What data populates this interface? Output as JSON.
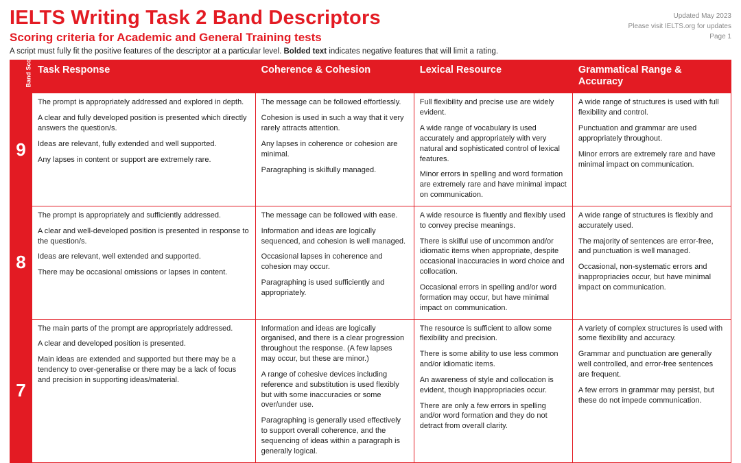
{
  "header": {
    "title": "IELTS Writing Task 2 Band Descriptors",
    "subtitle": "Scoring criteria for Academic and General Training tests",
    "note_pre": "A script must fully fit the positive features of the descriptor at a particular level. ",
    "note_bold": "Bolded text",
    "note_post": " indicates negative features that will limit a rating.",
    "meta_updated": "Updated May 2023",
    "meta_visit": "Please visit IELTS.org for updates",
    "meta_page": "Page 1"
  },
  "columns": {
    "band": "Band Score",
    "c1": "Task Response",
    "c2": "Coherence & Cohesion",
    "c3": "Lexical Resource",
    "c4": "Grammatical Range & Accuracy"
  },
  "rows": [
    {
      "band": "9",
      "c1": [
        "The prompt is appropriately addressed and explored in depth.",
        "A clear and fully developed position is presented which directly answers the question/s.",
        "Ideas are relevant, fully extended and well supported.",
        "Any lapses in content or support are extremely rare."
      ],
      "c2": [
        "The message can be followed effortlessly.",
        "Cohesion is used in such a way that it very rarely attracts attention.",
        "Any lapses in coherence or cohesion are minimal.",
        "Paragraphing is skilfully managed."
      ],
      "c3": [
        "Full flexibility and precise use are widely evident.",
        "A wide range of vocabulary is used accurately and appropriately with very natural and sophisticated control of lexical features.",
        "Minor errors in spelling and word formation are extremely rare and have minimal impact on communication."
      ],
      "c4": [
        "A wide range of structures is used with full flexibility and control.",
        "Punctuation and grammar are used appropriately throughout.",
        "Minor errors are extremely rare and have minimal impact on communication."
      ]
    },
    {
      "band": "8",
      "c1": [
        "The prompt is appropriately and sufficiently addressed.",
        "A clear and well-developed position is presented in response to the question/s.",
        "Ideas are relevant, well extended and supported.",
        "There may be occasional omissions or lapses in content."
      ],
      "c2": [
        "The message can be followed with ease.",
        "Information and ideas are logically sequenced, and cohesion is well managed.",
        "Occasional lapses in coherence and cohesion may occur.",
        "Paragraphing is used sufficiently and appropriately."
      ],
      "c3": [
        "A wide resource is fluently and flexibly used to convey precise meanings.",
        "There is skilful use of uncommon and/or idiomatic items when appropriate, despite occasional inaccuracies in word choice and collocation.",
        "Occasional errors in spelling and/or word formation may occur, but have minimal impact on communication."
      ],
      "c4": [
        "A wide range of structures is flexibly and accurately used.",
        "The majority of sentences are error-free, and punctuation is well managed.",
        "Occasional, non-systematic errors and inappropriacies occur, but have minimal impact on communication."
      ]
    },
    {
      "band": "7",
      "c1": [
        "The main parts of the prompt are appropriately addressed.",
        "A clear and developed position is presented.",
        "Main ideas are extended and supported but there may be a tendency to over-generalise or there may be a lack of focus and precision in supporting ideas/material."
      ],
      "c2": [
        "Information and ideas are logically organised, and there is a clear progression throughout the response. (A few lapses may occur, but these are minor.)",
        "A range of cohesive devices including reference and substitution is used flexibly but with some inaccuracies or some over/under use.",
        "Paragraphing is generally used effectively to support overall coherence, and the sequencing of ideas within a paragraph is generally logical."
      ],
      "c3": [
        "The resource is sufficient to allow some flexibility and precision.",
        "There is some ability to use less common and/or idiomatic items.",
        "An awareness of style and collocation is evident, though inappropriacies occur.",
        "There are only a few errors in spelling and/or word formation and they do not detract from overall clarity."
      ],
      "c4": [
        "A variety of complex structures is used with some flexibility and accuracy.",
        "Grammar and punctuation are generally well controlled, and error-free sentences are frequent.",
        "A few errors in grammar may persist, but these do not impede communication."
      ]
    }
  ],
  "colors": {
    "brand": "#e31b23",
    "text": "#222222",
    "meta": "#888888",
    "background": "#ffffff"
  }
}
